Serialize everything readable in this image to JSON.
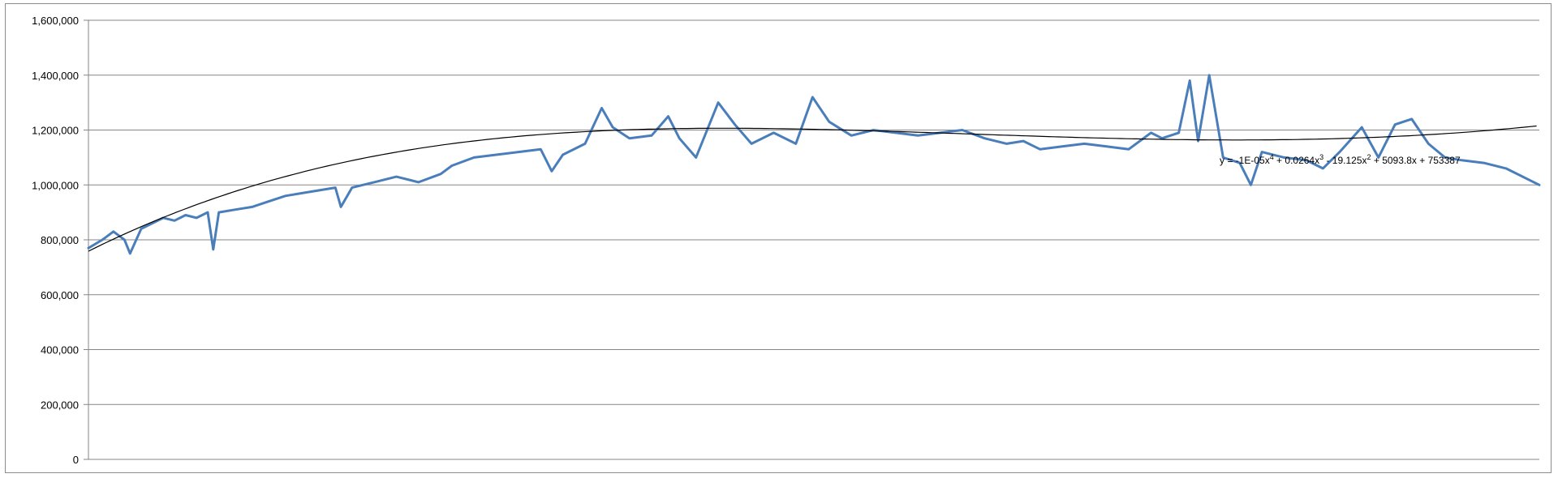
{
  "chart_data": {
    "type": "line",
    "title": "",
    "xlabel": "",
    "ylabel": "",
    "ylim": [
      0,
      1600000
    ],
    "yticks": [
      0,
      200000,
      400000,
      600000,
      800000,
      1000000,
      1200000,
      1400000,
      1600000
    ],
    "ytick_labels": [
      "0",
      "200,000",
      "400,000",
      "600,000",
      "800,000",
      "1,000,000",
      "1,200,000",
      "1,400,000",
      "1,600,000"
    ],
    "grid": true,
    "legend": "none",
    "x_range": [
      1,
      524
    ],
    "series": [
      {
        "color": "#4a7ebb",
        "points": [
          [
            1,
            770000
          ],
          [
            6,
            800000
          ],
          [
            10,
            830000
          ],
          [
            14,
            800000
          ],
          [
            16,
            750000
          ],
          [
            20,
            840000
          ],
          [
            24,
            860000
          ],
          [
            28,
            880000
          ],
          [
            32,
            870000
          ],
          [
            36,
            890000
          ],
          [
            40,
            880000
          ],
          [
            44,
            900000
          ],
          [
            46,
            765000
          ],
          [
            48,
            900000
          ],
          [
            54,
            910000
          ],
          [
            60,
            920000
          ],
          [
            66,
            940000
          ],
          [
            72,
            960000
          ],
          [
            78,
            970000
          ],
          [
            84,
            980000
          ],
          [
            90,
            990000
          ],
          [
            92,
            920000
          ],
          [
            96,
            990000
          ],
          [
            104,
            1010000
          ],
          [
            112,
            1030000
          ],
          [
            120,
            1010000
          ],
          [
            128,
            1040000
          ],
          [
            132,
            1070000
          ],
          [
            140,
            1100000
          ],
          [
            148,
            1110000
          ],
          [
            156,
            1120000
          ],
          [
            164,
            1130000
          ],
          [
            168,
            1050000
          ],
          [
            172,
            1110000
          ],
          [
            180,
            1150000
          ],
          [
            186,
            1280000
          ],
          [
            190,
            1210000
          ],
          [
            196,
            1170000
          ],
          [
            204,
            1180000
          ],
          [
            210,
            1250000
          ],
          [
            214,
            1170000
          ],
          [
            220,
            1100000
          ],
          [
            228,
            1300000
          ],
          [
            234,
            1220000
          ],
          [
            240,
            1150000
          ],
          [
            248,
            1190000
          ],
          [
            256,
            1150000
          ],
          [
            262,
            1320000
          ],
          [
            268,
            1230000
          ],
          [
            276,
            1180000
          ],
          [
            284,
            1200000
          ],
          [
            292,
            1190000
          ],
          [
            300,
            1180000
          ],
          [
            308,
            1190000
          ],
          [
            316,
            1200000
          ],
          [
            324,
            1170000
          ],
          [
            332,
            1150000
          ],
          [
            338,
            1160000
          ],
          [
            344,
            1130000
          ],
          [
            352,
            1140000
          ],
          [
            360,
            1150000
          ],
          [
            368,
            1140000
          ],
          [
            376,
            1130000
          ],
          [
            384,
            1190000
          ],
          [
            388,
            1170000
          ],
          [
            394,
            1190000
          ],
          [
            398,
            1380000
          ],
          [
            401,
            1160000
          ],
          [
            405,
            1400000
          ],
          [
            410,
            1100000
          ],
          [
            416,
            1080000
          ],
          [
            420,
            1000000
          ],
          [
            424,
            1120000
          ],
          [
            432,
            1100000
          ],
          [
            440,
            1090000
          ],
          [
            446,
            1060000
          ],
          [
            452,
            1120000
          ],
          [
            460,
            1210000
          ],
          [
            466,
            1100000
          ],
          [
            472,
            1220000
          ],
          [
            478,
            1240000
          ],
          [
            484,
            1150000
          ],
          [
            490,
            1100000
          ],
          [
            496,
            1090000
          ],
          [
            504,
            1080000
          ],
          [
            512,
            1060000
          ],
          [
            524,
            1000000
          ]
        ]
      }
    ],
    "trendline": {
      "type": "polynomial",
      "order": 4,
      "coefficients": [
        753387,
        5093.8,
        -19.125,
        0.0264,
        -1e-05
      ],
      "equation_prefix": "y = -1E-05x",
      "equation_sup1": "4",
      "equation_mid1": " + 0.0264x",
      "equation_sup2": "3",
      "equation_mid2": " - 19.125x",
      "equation_sup3": "2",
      "equation_suffix": " + 5093.8x + 753387",
      "color": "#000000"
    }
  }
}
